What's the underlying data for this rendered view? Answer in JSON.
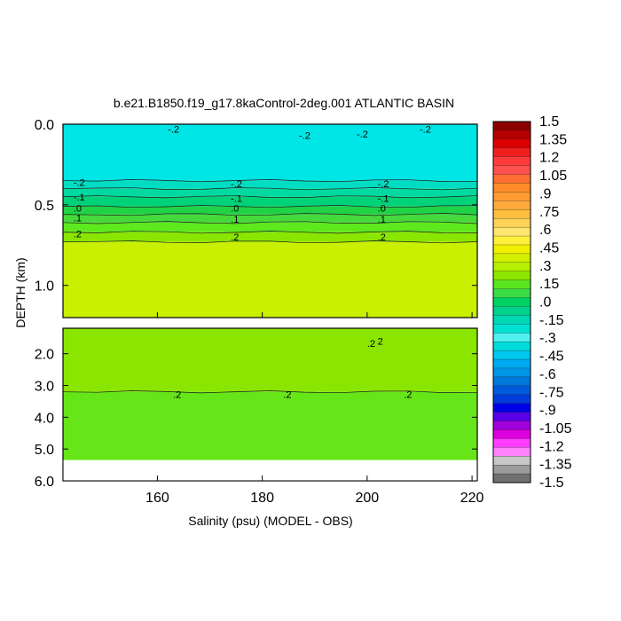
{
  "chart_data": {
    "type": "heatmap",
    "title": "b.e21.B1850.f19_g17.8kaControl-2deg.001 ATLANTIC BASIN",
    "xlabel": "Salinity (psu) (MODEL - OBS)",
    "ylabel": "DEPTH (km)",
    "xlim": [
      142,
      221
    ],
    "x_ticks": [
      {
        "value": 160,
        "label": "160"
      },
      {
        "value": 180,
        "label": "180"
      },
      {
        "value": 200,
        "label": "200"
      },
      {
        "value": 220,
        "label": "220"
      }
    ],
    "upper_panel": {
      "ylim": [
        0.0,
        1.2
      ],
      "y_ticks": [
        {
          "value": 0.0,
          "label": "0.0"
        },
        {
          "value": 0.5,
          "label": "0.5"
        },
        {
          "value": 1.0,
          "label": "1.0"
        }
      ],
      "bands": [
        {
          "from_depth": 0.0,
          "to_depth": 0.35,
          "color": "#00e6e6"
        },
        {
          "from_depth": 0.35,
          "to_depth": 0.4,
          "color": "#00ddc2"
        },
        {
          "from_depth": 0.4,
          "to_depth": 0.45,
          "color": "#00d9a0"
        },
        {
          "from_depth": 0.45,
          "to_depth": 0.51,
          "color": "#00d27a"
        },
        {
          "from_depth": 0.51,
          "to_depth": 0.56,
          "color": "#20d245"
        },
        {
          "from_depth": 0.56,
          "to_depth": 0.61,
          "color": "#46d93c"
        },
        {
          "from_depth": 0.61,
          "to_depth": 0.67,
          "color": "#5ee81e"
        },
        {
          "from_depth": 0.67,
          "to_depth": 0.73,
          "color": "#8ae600"
        },
        {
          "from_depth": 0.73,
          "to_depth": 1.2,
          "color": "#c8f000"
        }
      ],
      "contour_labels": [
        {
          "x": 162,
          "depth": 0.03,
          "text": "-.2"
        },
        {
          "x": 187,
          "depth": 0.07,
          "text": "-.2"
        },
        {
          "x": 198,
          "depth": 0.06,
          "text": "-.2"
        },
        {
          "x": 210,
          "depth": 0.03,
          "text": "-.2"
        },
        {
          "x": 144,
          "depth": 0.36,
          "text": "-.2"
        },
        {
          "x": 174,
          "depth": 0.37,
          "text": "-.2"
        },
        {
          "x": 202,
          "depth": 0.37,
          "text": "-.2"
        },
        {
          "x": 144,
          "depth": 0.45,
          "text": "-.1"
        },
        {
          "x": 174,
          "depth": 0.46,
          "text": "-.1"
        },
        {
          "x": 202,
          "depth": 0.46,
          "text": "-.1"
        },
        {
          "x": 144,
          "depth": 0.52,
          "text": ".0"
        },
        {
          "x": 174,
          "depth": 0.52,
          "text": ".0"
        },
        {
          "x": 202,
          "depth": 0.52,
          "text": ".0"
        },
        {
          "x": 144,
          "depth": 0.58,
          "text": ".1"
        },
        {
          "x": 174,
          "depth": 0.59,
          "text": ".1"
        },
        {
          "x": 202,
          "depth": 0.59,
          "text": ".1"
        },
        {
          "x": 144,
          "depth": 0.68,
          "text": ".2"
        },
        {
          "x": 174,
          "depth": 0.7,
          "text": ".2"
        },
        {
          "x": 202,
          "depth": 0.7,
          "text": ".2"
        }
      ]
    },
    "lower_panel": {
      "ylim": [
        1.2,
        6.0
      ],
      "y_ticks": [
        {
          "value": 2.0,
          "label": "2.0"
        },
        {
          "value": 3.0,
          "label": "3.0"
        },
        {
          "value": 4.0,
          "label": "4.0"
        },
        {
          "value": 5.0,
          "label": "5.0"
        },
        {
          "value": 6.0,
          "label": "6.0"
        }
      ],
      "data_bottom_depth": 5.35,
      "bands": [
        {
          "from_depth": 1.2,
          "to_depth": 3.2,
          "color": "#8ae600"
        },
        {
          "from_depth": 3.2,
          "to_depth": 5.35,
          "color": "#66e619"
        }
      ],
      "contour_labels": [
        {
          "x": 163,
          "depth": 3.28,
          "text": ".2"
        },
        {
          "x": 184,
          "depth": 3.28,
          "text": ".2"
        },
        {
          "x": 207,
          "depth": 3.28,
          "text": ".2"
        },
        {
          "x": 200,
          "depth": 1.68,
          "text": ".2"
        },
        {
          "x": 202,
          "depth": 1.6,
          "text": "2"
        }
      ]
    },
    "colorbar": {
      "labels": [
        "1.5",
        "1.35",
        "1.2",
        "1.05",
        ".9",
        ".75",
        ".6",
        ".45",
        ".3",
        ".15",
        ".0",
        "-.15",
        "-.3",
        "-.45",
        "-.6",
        "-.75",
        "-.9",
        "-1.05",
        "-1.2",
        "-1.35",
        "-1.5"
      ],
      "colors": [
        "#8c0000",
        "#b40000",
        "#dc0000",
        "#f01e1e",
        "#ff3c3c",
        "#ff5050",
        "#ff6e32",
        "#ff8c28",
        "#ff9b32",
        "#ffaa3c",
        "#ffbe3c",
        "#ffd25a",
        "#ffe66e",
        "#fff03c",
        "#f0f000",
        "#d2f000",
        "#b4f000",
        "#8ce600",
        "#5ae61e",
        "#3cdc46",
        "#00d264",
        "#00d28c",
        "#00d7b4",
        "#00e1d2",
        "#50f0f0",
        "#00dcdc",
        "#00c8f0",
        "#00aaf0",
        "#0096e6",
        "#0078dc",
        "#005adc",
        "#003cdc",
        "#0000e6",
        "#5a00e6",
        "#a000dc",
        "#dc00dc",
        "#ff3cff",
        "#ff82ff",
        "#c8c8c8",
        "#9b9b9b",
        "#707070"
      ]
    }
  }
}
